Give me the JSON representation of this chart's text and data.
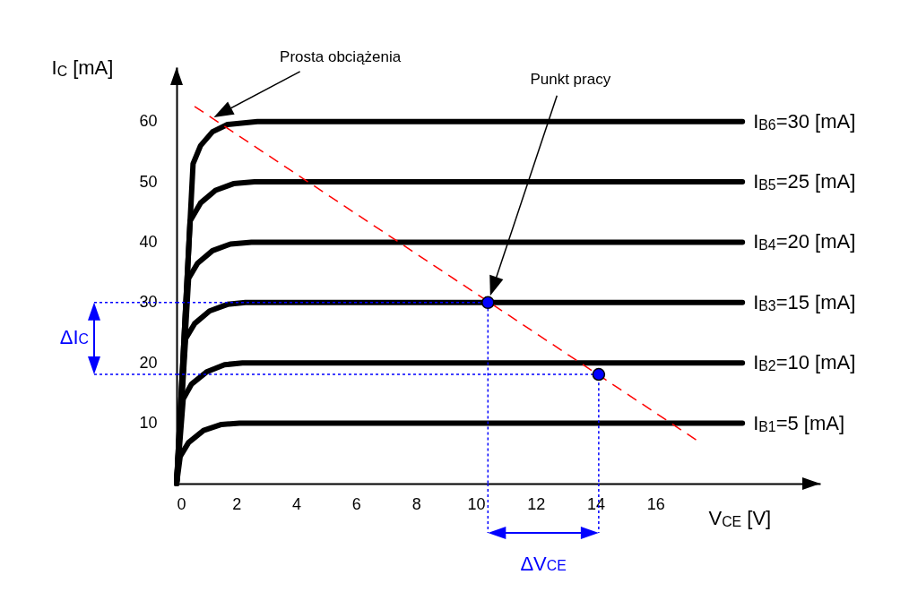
{
  "chart_data": {
    "type": "line",
    "xlabel": "V$_{CE}$ [V]",
    "ylabel": "I$_{C}$ [mA]",
    "xlim": [
      0,
      21.5
    ],
    "ylim": [
      0,
      69
    ],
    "xticks": [
      0,
      2,
      4,
      6,
      8,
      10,
      12,
      14,
      16
    ],
    "yticks": [
      10,
      20,
      30,
      40,
      50,
      60
    ],
    "grid": false,
    "annotations": [
      "Prosta obciążenia",
      "Punkt pracy",
      "ΔI$_{C}$",
      "ΔV$_{CE}$"
    ],
    "series": [
      {
        "name": "I$_{B1}$=5 [mA]",
        "color": "#000000",
        "x": [
          0,
          0.12,
          0.4,
          0.9,
          1.5,
          2.1,
          18.9
        ],
        "values": [
          0,
          4.5,
          6.8,
          8.8,
          9.8,
          10,
          10
        ]
      },
      {
        "name": "I$_{B2}$=10 [mA]",
        "color": "#000000",
        "x": [
          0,
          0.22,
          0.5,
          1.0,
          1.6,
          2.2,
          18.9
        ],
        "values": [
          0,
          14,
          16.5,
          18.5,
          19.7,
          20,
          20
        ]
      },
      {
        "name": "I$_{B3}$=15 [mA]",
        "color": "#000000",
        "x": [
          0,
          0.3,
          0.6,
          1.1,
          1.7,
          2.3,
          18.9
        ],
        "values": [
          0,
          24,
          26.5,
          28.6,
          29.7,
          30,
          30
        ]
      },
      {
        "name": "I$_{B4}$=20 [mA]",
        "color": "#000000",
        "x": [
          0,
          0.4,
          0.7,
          1.2,
          1.8,
          2.5,
          18.9
        ],
        "values": [
          0,
          34,
          36.5,
          38.6,
          39.7,
          40,
          40
        ]
      },
      {
        "name": "I$_{B5}$=25 [mA]",
        "color": "#000000",
        "x": [
          0,
          0.45,
          0.8,
          1.3,
          1.9,
          2.6,
          18.9
        ],
        "values": [
          0,
          43.5,
          46.5,
          48.6,
          49.7,
          50,
          50
        ]
      },
      {
        "name": "I$_{B6}$=30 [mA]",
        "color": "#000000",
        "x": [
          0,
          0.55,
          0.8,
          1.2,
          1.7,
          2.7,
          18.9
        ],
        "values": [
          0,
          53,
          56,
          58.3,
          59.5,
          60,
          60
        ]
      },
      {
        "color": "#ff0000",
        "line_style": "dashed",
        "x": [
          0.6,
          17.4
        ],
        "values": [
          62.5,
          7.1
        ]
      },
      {
        "color": "#0000ff",
        "line_style": "dotted",
        "x": [
          0,
          10.4,
          10.4
        ],
        "values": [
          30,
          30,
          0
        ]
      },
      {
        "color": "#0000ff",
        "line_style": "dotted",
        "x": [
          0,
          14.1,
          14.1
        ],
        "values": [
          18.1,
          18.1,
          0
        ]
      },
      {
        "type": "scatter",
        "color": "#0000ff",
        "marker": "circle",
        "x": [
          10.4,
          14.1
        ],
        "values": [
          30,
          18.1
        ]
      }
    ]
  }
}
